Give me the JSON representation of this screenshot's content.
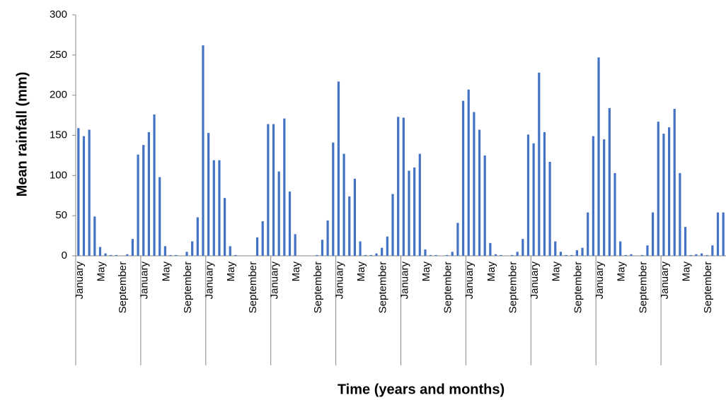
{
  "chart_data": {
    "type": "bar",
    "y_label": "Mean rainfall (mm)",
    "x_label": "Time (years and months)",
    "color": "#4472c4",
    "ylim": [
      0,
      300
    ],
    "yticks": [
      0,
      50,
      100,
      150,
      200,
      250,
      300
    ],
    "grid": false,
    "categories": [
      "January",
      null,
      null,
      null,
      "May",
      null,
      null,
      null,
      "September",
      null,
      null,
      null,
      "January",
      null,
      null,
      null,
      "May",
      null,
      null,
      null,
      "September",
      null,
      null,
      null,
      "January",
      null,
      null,
      null,
      "May",
      null,
      null,
      null,
      "September",
      null,
      null,
      null,
      "January",
      null,
      null,
      null,
      "May",
      null,
      null,
      null,
      "September",
      null,
      null,
      null,
      "January",
      null,
      null,
      null,
      "May",
      null,
      null,
      null,
      "September",
      null,
      null,
      null,
      "January",
      null,
      null,
      null,
      "May",
      null,
      null,
      null,
      "September",
      null,
      null,
      null,
      "January",
      null,
      null,
      null,
      "May",
      null,
      null,
      null,
      "September",
      null,
      null,
      null,
      "January",
      null,
      null,
      null,
      "May",
      null,
      null,
      null,
      "September",
      null,
      null,
      null,
      "January",
      null,
      null,
      null,
      "May",
      null,
      null,
      null,
      "September",
      null,
      null,
      null,
      "January",
      null,
      null,
      null,
      "May",
      null,
      null,
      null,
      "September",
      null,
      null,
      null
    ],
    "values": [
      159,
      149,
      157,
      49,
      11,
      3,
      1,
      1,
      0,
      2,
      21,
      126,
      138,
      154,
      176,
      98,
      12,
      1,
      1,
      0,
      5,
      18,
      48,
      262,
      153,
      119,
      119,
      72,
      12,
      1,
      0,
      0,
      0,
      23,
      43,
      164,
      164,
      105,
      171,
      80,
      27,
      0,
      0,
      0,
      1,
      20,
      44,
      141,
      217,
      127,
      74,
      96,
      18,
      1,
      1,
      3,
      10,
      24,
      77,
      173,
      172,
      106,
      110,
      127,
      8,
      1,
      1,
      0,
      1,
      5,
      41,
      193,
      207,
      179,
      157,
      125,
      16,
      2,
      1,
      0,
      1,
      5,
      21,
      151,
      140,
      228,
      154,
      117,
      18,
      5,
      1,
      1,
      7,
      10,
      54,
      149,
      247,
      145,
      184,
      103,
      18,
      1,
      2,
      0,
      1,
      13,
      54,
      167,
      152,
      160,
      183,
      103,
      36,
      1,
      2,
      3,
      1,
      13,
      54,
      54
    ]
  }
}
